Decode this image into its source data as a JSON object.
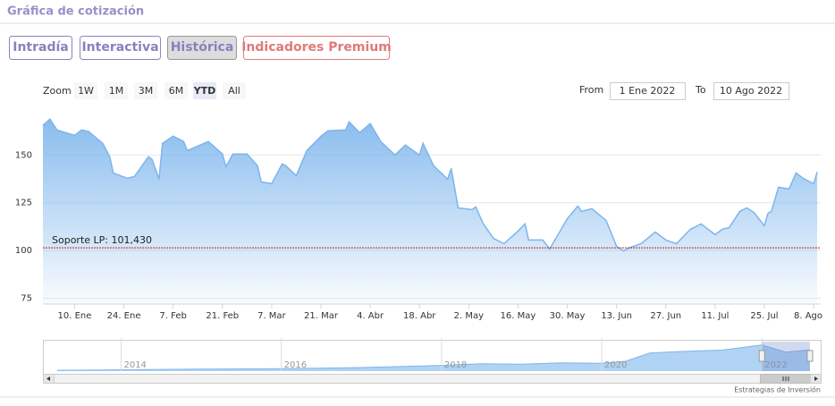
{
  "header": {
    "title": "Gráfica de cotización"
  },
  "tabs": [
    "Intradía",
    "Interactiva",
    "Histórica",
    "Indicadores Premium"
  ],
  "range_selector": {
    "zoom_label": "Zoom",
    "buttons": [
      "1W",
      "1M",
      "3M",
      "6M",
      "YTD",
      "All"
    ],
    "selected": "YTD",
    "from_label": "From",
    "from": "1 Ene 2022",
    "to_label": "To",
    "to": "10 Ago 2022"
  },
  "credit": "Estrategias de Inversión",
  "chart_data": [
    {
      "type": "area",
      "color": "#7cb5ec",
      "grid": true,
      "x": [
        "2022-01-01",
        "2022-01-03",
        "2022-01-05",
        "2022-01-10",
        "2022-01-12",
        "2022-01-14",
        "2022-01-18",
        "2022-01-20",
        "2022-01-21",
        "2022-01-25",
        "2022-01-27",
        "2022-01-31",
        "2022-02-01",
        "2022-02-03",
        "2022-02-04",
        "2022-02-07",
        "2022-02-10",
        "2022-02-11",
        "2022-02-17",
        "2022-02-21",
        "2022-02-22",
        "2022-02-24",
        "2022-02-28",
        "2022-03-03",
        "2022-03-04",
        "2022-03-07",
        "2022-03-10",
        "2022-03-11",
        "2022-03-14",
        "2022-03-17",
        "2022-03-21",
        "2022-03-23",
        "2022-03-28",
        "2022-03-29",
        "2022-04-01",
        "2022-04-04",
        "2022-04-07",
        "2022-04-11",
        "2022-04-14",
        "2022-04-18",
        "2022-04-19",
        "2022-04-22",
        "2022-04-26",
        "2022-04-27",
        "2022-04-29",
        "2022-05-03",
        "2022-05-04",
        "2022-05-06",
        "2022-05-09",
        "2022-05-12",
        "2022-05-16",
        "2022-05-18",
        "2022-05-19",
        "2022-05-23",
        "2022-05-25",
        "2022-05-30",
        "2022-06-02",
        "2022-06-03",
        "2022-06-06",
        "2022-06-10",
        "2022-06-13",
        "2022-06-15",
        "2022-06-17",
        "2022-06-20",
        "2022-06-24",
        "2022-06-27",
        "2022-06-30",
        "2022-07-04",
        "2022-07-07",
        "2022-07-11",
        "2022-07-13",
        "2022-07-15",
        "2022-07-18",
        "2022-07-20",
        "2022-07-22",
        "2022-07-25",
        "2022-07-26",
        "2022-07-27",
        "2022-07-29",
        "2022-08-01",
        "2022-08-03",
        "2022-08-05",
        "2022-08-08",
        "2022-08-09"
      ],
      "values": [
        165.5,
        168.8,
        163.1,
        160.3,
        163.1,
        162.2,
        156.1,
        149.1,
        140.6,
        137.8,
        138.7,
        149.1,
        147.7,
        137.3,
        156.1,
        159.8,
        157.0,
        152.3,
        157.0,
        150.5,
        143.9,
        150.5,
        150.5,
        144.4,
        135.9,
        135.0,
        145.3,
        144.4,
        139.2,
        152.3,
        159.8,
        162.7,
        163.1,
        167.3,
        161.7,
        166.4,
        157.0,
        150.0,
        155.2,
        150.0,
        156.1,
        144.4,
        137.3,
        143.0,
        122.3,
        121.4,
        122.8,
        114.4,
        106.4,
        103.6,
        110.2,
        113.9,
        105.5,
        105.5,
        100.8,
        116.7,
        123.3,
        120.5,
        121.9,
        115.8,
        102.2,
        99.8,
        101.7,
        103.6,
        109.7,
        105.5,
        103.6,
        111.1,
        113.9,
        108.3,
        111.1,
        112.0,
        120.5,
        122.3,
        120.0,
        113.0,
        119.5,
        120.5,
        133.1,
        132.2,
        140.6,
        137.8,
        135.0,
        141.1
      ],
      "xlim": [
        "2022-01-01",
        "2022-08-10"
      ],
      "xticks": [
        {
          "value": "2022-01-10",
          "label": "10. Ene"
        },
        {
          "value": "2022-01-24",
          "label": "24. Ene"
        },
        {
          "value": "2022-02-07",
          "label": "7. Feb"
        },
        {
          "value": "2022-02-21",
          "label": "21. Feb"
        },
        {
          "value": "2022-03-07",
          "label": "7. Mar"
        },
        {
          "value": "2022-03-21",
          "label": "21. Mar"
        },
        {
          "value": "2022-04-04",
          "label": "4. Abr"
        },
        {
          "value": "2022-04-18",
          "label": "18. Abr"
        },
        {
          "value": "2022-05-02",
          "label": "2. May"
        },
        {
          "value": "2022-05-16",
          "label": "16. May"
        },
        {
          "value": "2022-05-30",
          "label": "30. May"
        },
        {
          "value": "2022-06-13",
          "label": "13. Jun"
        },
        {
          "value": "2022-06-27",
          "label": "27. Jun"
        },
        {
          "value": "2022-07-11",
          "label": "11. Jul"
        },
        {
          "value": "2022-07-25",
          "label": "25. Jul"
        },
        {
          "value": "2022-08-08",
          "label": "8. Ago"
        }
      ],
      "ylim": [
        72,
        174
      ],
      "yticks": [
        75,
        100,
        125,
        150
      ],
      "annotations": [
        {
          "label": "Soporte LP: 101,430",
          "value": 101.43,
          "color": "#b22222"
        }
      ]
    },
    {
      "type": "area",
      "color": "#7cb5ec",
      "x": [
        2013.2,
        2014,
        2015,
        2016,
        2017,
        2018,
        2018.5,
        2019,
        2019.5,
        2020,
        2020.3,
        2020.6,
        2021,
        2021.5,
        2022,
        2022.3,
        2022.6
      ],
      "values": [
        5,
        8,
        12,
        15,
        22,
        35,
        45,
        42,
        50,
        48,
        60,
        110,
        120,
        128,
        160,
        115,
        130
      ],
      "xlim": [
        2013.18,
        2022.6
      ],
      "xticks": [
        2014,
        2016,
        2018,
        2020,
        2022
      ],
      "ylim": [
        0,
        180
      ],
      "selection": [
        2022,
        2022.6
      ]
    }
  ]
}
